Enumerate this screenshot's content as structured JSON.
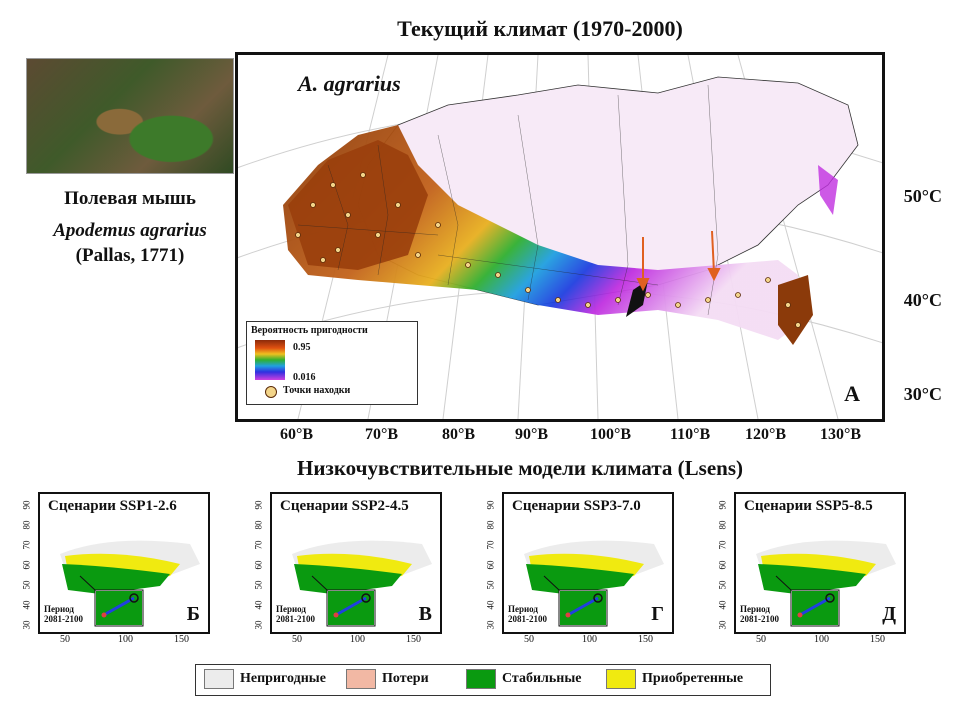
{
  "title_top": "Текущий климат (1970-2000)",
  "species_common": "Полевая мышь",
  "species_latin": "Apodemus agrarius",
  "species_author": "(Pallas, 1771)",
  "main_map": {
    "species_label": "A. agrarius",
    "panel_letter": "A",
    "legend_title": "Вероятность пригодности",
    "legend_max": "0.95",
    "legend_min": "0.016",
    "legend_points": "Точки находки",
    "latitudes": [
      "50°C",
      "40°C",
      "30°C"
    ],
    "longitudes": [
      "60°В",
      "70°В",
      "80°В",
      "90°В",
      "100°В",
      "110°В",
      "120°В",
      "130°В"
    ]
  },
  "title_mid": "Низкочувствительные модели климата (Lsens)",
  "panels": [
    {
      "title": "Сценарии SSP1-2.6",
      "letter": "Б",
      "period_line1": "Период",
      "period_line2": "2081-2100"
    },
    {
      "title": "Сценарии SSP2-4.5",
      "letter": "В",
      "period_line1": "Период",
      "period_line2": "2081-2100"
    },
    {
      "title": "Сценарии SSP3-7.0",
      "letter": "Г",
      "period_line1": "Период",
      "period_line2": "2081-2100"
    },
    {
      "title": "Сценарии SSP5-8.5",
      "letter": "Д",
      "period_line1": "Период",
      "period_line2": "2081-2100"
    }
  ],
  "panel_y_ticks": [
    "90",
    "80",
    "70",
    "60",
    "50",
    "40",
    "30"
  ],
  "panel_x_ticks": [
    "50",
    "100",
    "150"
  ],
  "legend": [
    {
      "label": "Непригодные",
      "color": "#ececec"
    },
    {
      "label": "Потери",
      "color": "#f2b8a4"
    },
    {
      "label": "Стабильные",
      "color": "#0a9a10"
    },
    {
      "label": "Приобретенные",
      "color": "#f0ea10"
    }
  ]
}
